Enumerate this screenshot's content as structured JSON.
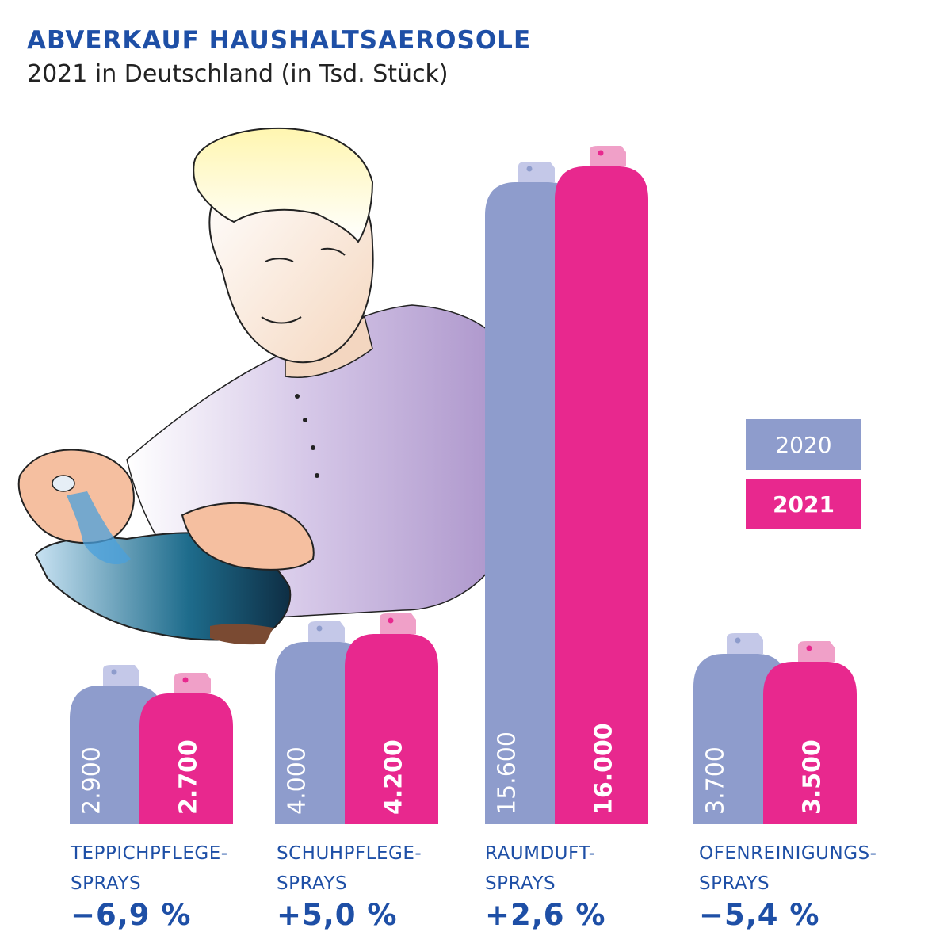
{
  "header": {
    "title": "ABVERKAUF HAUSHALTSAEROSOLE",
    "subtitle": "2021 in Deutschland (in Tsd. Stück)"
  },
  "legend": {
    "2020": "2020",
    "2021": "2021"
  },
  "colors": {
    "series_2020": "#8e9ccc",
    "series_2021": "#e8288e",
    "cap_2020": "#c4c8e8",
    "cap_2021": "#f0a0c8",
    "text_blue": "#1e4fa6"
  },
  "categories": [
    {
      "line1": "TEPPICHPFLEGE-",
      "line2": "SPRAYS",
      "change": "−6,9 %"
    },
    {
      "line1": "SCHUHPFLEGE-",
      "line2": "SPRAYS",
      "change": "+5,0 %"
    },
    {
      "line1": "RAUMDUFT-",
      "line2": "SPRAYS",
      "change": "+2,6 %"
    },
    {
      "line1": "OFENREINIGUNGS-",
      "line2": "SPRAYS",
      "change": "−5,4 %"
    }
  ],
  "chart_data": {
    "type": "bar",
    "title": "ABVERKAUF HAUSHALTSAEROSOLE",
    "subtitle": "2021 in Deutschland (in Tsd. Stück)",
    "categories": [
      "TEPPICHPFLEGE-SPRAYS",
      "SCHUHPFLEGE-SPRAYS",
      "RAUMDUFT-SPRAYS",
      "OFENREINIGUNGS-SPRAYS"
    ],
    "series": [
      {
        "name": "2020",
        "values": [
          2900,
          4000,
          15600,
          3700
        ],
        "labels": [
          "2.900",
          "4.000",
          "15.600",
          "3.700"
        ]
      },
      {
        "name": "2021",
        "values": [
          2700,
          4200,
          16000,
          3500
        ],
        "labels": [
          "2.700",
          "4.200",
          "16.000",
          "3.500"
        ]
      }
    ],
    "changes": [
      "−6,9 %",
      "+5,0 %",
      "+2,6 %",
      "−5,4 %"
    ],
    "legend": "right",
    "grid": false
  }
}
